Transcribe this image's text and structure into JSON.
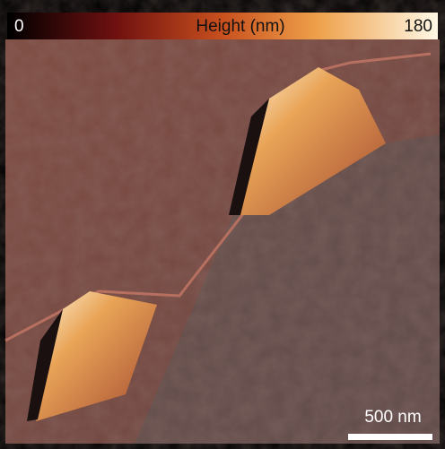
{
  "colorbar": {
    "min": 0,
    "label": "Height (nm)",
    "max": 180
  },
  "scale_bar": {
    "label": "500 nm"
  }
}
